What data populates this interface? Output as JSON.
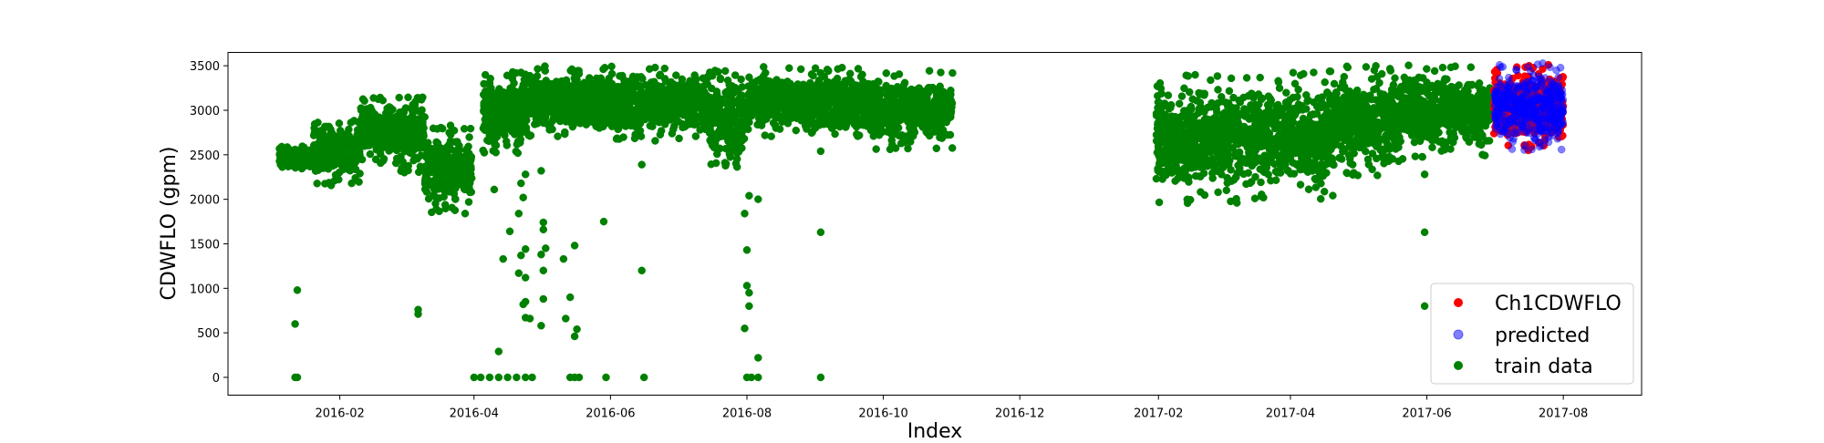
{
  "chart_data": {
    "type": "scatter",
    "title": "",
    "xlabel": "Index",
    "ylabel": "CDWFLO (gpm)",
    "xlim": [
      "2015-12-13",
      "2017-09-05"
    ],
    "ylim": [
      -200,
      3650
    ],
    "x_ticks": [
      "2016-02",
      "2016-04",
      "2016-06",
      "2016-08",
      "2016-10",
      "2016-12",
      "2017-02",
      "2017-04",
      "2017-06",
      "2017-08"
    ],
    "x_tick_dates": [
      "2016-02-01",
      "2016-04-01",
      "2016-06-01",
      "2016-08-01",
      "2016-10-01",
      "2016-12-01",
      "2017-02-01",
      "2017-04-01",
      "2017-06-01",
      "2017-08-01"
    ],
    "y_ticks": [
      0,
      500,
      1000,
      1500,
      2000,
      2500,
      3000,
      3500
    ],
    "grid": false,
    "legend": {
      "position": "lower-right",
      "entries": [
        "Ch1CDWFLO",
        "predicted",
        "train data"
      ]
    },
    "series": [
      {
        "name": "train data",
        "color": "#008000",
        "note_bands": "dense green band of hourly readings",
        "bands": [
          {
            "start": "2016-01-05",
            "end": "2016-01-20",
            "low": 2340,
            "high": 2600
          },
          {
            "start": "2016-01-20",
            "end": "2016-02-10",
            "low": 2150,
            "high": 2900
          },
          {
            "start": "2016-02-10",
            "end": "2016-02-28",
            "low": 2400,
            "high": 3150
          },
          {
            "start": "2016-02-28",
            "end": "2016-03-10",
            "low": 2300,
            "high": 3150
          },
          {
            "start": "2016-03-10",
            "end": "2016-03-31",
            "low": 1850,
            "high": 2850
          },
          {
            "start": "2016-04-05",
            "end": "2016-04-25",
            "low": 2500,
            "high": 3450
          },
          {
            "start": "2016-04-25",
            "end": "2016-05-15",
            "low": 2700,
            "high": 3500
          },
          {
            "start": "2016-05-15",
            "end": "2016-07-15",
            "low": 2650,
            "high": 3500
          },
          {
            "start": "2016-07-15",
            "end": "2016-07-31",
            "low": 2350,
            "high": 3450
          },
          {
            "start": "2016-08-01",
            "end": "2016-09-20",
            "low": 2700,
            "high": 3500
          },
          {
            "start": "2016-09-20",
            "end": "2016-11-01",
            "low": 2550,
            "high": 3450
          },
          {
            "start": "2017-01-31",
            "end": "2017-03-15",
            "low": 1950,
            "high": 3400
          },
          {
            "start": "2017-03-15",
            "end": "2017-04-20",
            "low": 2000,
            "high": 3450
          },
          {
            "start": "2017-04-20",
            "end": "2017-05-20",
            "low": 2250,
            "high": 3500
          },
          {
            "start": "2017-05-20",
            "end": "2017-06-30",
            "low": 2450,
            "high": 3520
          }
        ],
        "points": [
          [
            "2016-01-13",
            980
          ],
          [
            "2016-01-12",
            600
          ],
          [
            "2016-01-12",
            0
          ],
          [
            "2016-01-13",
            0
          ],
          [
            "2016-03-07",
            760
          ],
          [
            "2016-03-07",
            710
          ],
          [
            "2016-03-28",
            1840
          ],
          [
            "2016-04-01",
            0
          ],
          [
            "2016-04-04",
            0
          ],
          [
            "2016-04-08",
            0
          ],
          [
            "2016-04-12",
            0
          ],
          [
            "2016-04-16",
            0
          ],
          [
            "2016-04-20",
            0
          ],
          [
            "2016-04-24",
            0
          ],
          [
            "2016-04-27",
            0
          ],
          [
            "2016-04-10",
            2110
          ],
          [
            "2016-04-12",
            290
          ],
          [
            "2016-04-14",
            1330
          ],
          [
            "2016-04-17",
            1640
          ],
          [
            "2016-04-21",
            1170
          ],
          [
            "2016-04-22",
            1370
          ],
          [
            "2016-04-24",
            1440
          ],
          [
            "2016-04-24",
            1120
          ],
          [
            "2016-04-21",
            1840
          ],
          [
            "2016-04-23",
            2020
          ],
          [
            "2016-04-22",
            2180
          ],
          [
            "2016-04-24",
            2280
          ],
          [
            "2016-04-24",
            850
          ],
          [
            "2016-04-23",
            820
          ],
          [
            "2016-04-24",
            670
          ],
          [
            "2016-04-26",
            660
          ],
          [
            "2016-05-01",
            2320
          ],
          [
            "2016-05-02",
            1740
          ],
          [
            "2016-05-02",
            1660
          ],
          [
            "2016-05-03",
            1450
          ],
          [
            "2016-05-01",
            1380
          ],
          [
            "2016-05-02",
            1200
          ],
          [
            "2016-05-02",
            880
          ],
          [
            "2016-05-01",
            580
          ],
          [
            "2016-05-11",
            1330
          ],
          [
            "2016-05-12",
            660
          ],
          [
            "2016-05-14",
            900
          ],
          [
            "2016-05-16",
            1480
          ],
          [
            "2016-05-17",
            540
          ],
          [
            "2016-05-16",
            460
          ],
          [
            "2016-05-14",
            0
          ],
          [
            "2016-05-16",
            0
          ],
          [
            "2016-05-18",
            0
          ],
          [
            "2016-05-29",
            1750
          ],
          [
            "2016-05-30",
            0
          ],
          [
            "2016-06-15",
            2390
          ],
          [
            "2016-06-15",
            1200
          ],
          [
            "2016-06-16",
            0
          ],
          [
            "2016-07-31",
            1840
          ],
          [
            "2016-08-01",
            1430
          ],
          [
            "2016-08-01",
            1030
          ],
          [
            "2016-08-02",
            950
          ],
          [
            "2016-08-02",
            800
          ],
          [
            "2016-07-31",
            550
          ],
          [
            "2016-08-02",
            2040
          ],
          [
            "2016-08-06",
            2000
          ],
          [
            "2016-08-06",
            220
          ],
          [
            "2016-08-01",
            0
          ],
          [
            "2016-08-03",
            0
          ],
          [
            "2016-08-06",
            0
          ],
          [
            "2016-09-03",
            1630
          ],
          [
            "2016-09-03",
            0
          ],
          [
            "2016-09-03",
            2540
          ],
          [
            "2017-05-31",
            1630
          ],
          [
            "2017-05-31",
            800
          ],
          [
            "2017-05-31",
            2280
          ]
        ]
      },
      {
        "name": "Ch1CDWFLO",
        "color": "#ff0000",
        "bands": [
          {
            "start": "2017-07-01",
            "end": "2017-08-01",
            "low": 2550,
            "high": 3520
          }
        ]
      },
      {
        "name": "predicted",
        "color": "#0000ff",
        "alpha": 0.5,
        "bands": [
          {
            "start": "2017-07-01",
            "end": "2017-08-01",
            "low": 2550,
            "high": 3540
          }
        ]
      }
    ]
  }
}
